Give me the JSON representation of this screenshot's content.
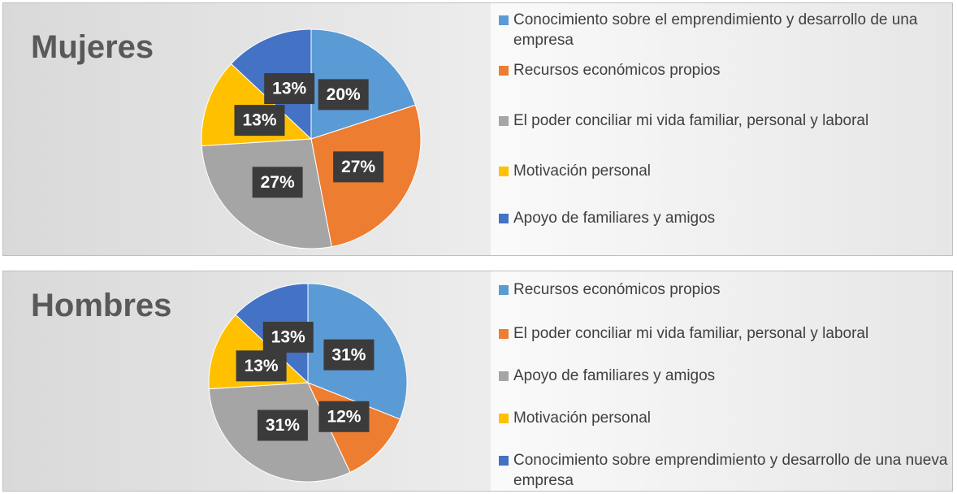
{
  "chart_data": [
    {
      "type": "pie",
      "title": "Mujeres",
      "categories": [
        "Conocimiento sobre el emprendimiento y desarrollo de una empresa",
        "Recursos económicos propios",
        "El poder conciliar mi vida familiar, personal y laboral",
        "Motivación personal",
        "Apoyo de familiares y amigos"
      ],
      "values": [
        20,
        27,
        27,
        13,
        13
      ],
      "value_labels": [
        "20%",
        "27%",
        "27%",
        "13%",
        "13%"
      ],
      "colors": [
        "#5b9bd5",
        "#ed7d31",
        "#a5a5a5",
        "#ffc000",
        "#4472c4"
      ],
      "legend": "right"
    },
    {
      "type": "pie",
      "title": "Hombres",
      "categories": [
        "Recursos económicos propios",
        "El poder conciliar mi vida familiar, personal y laboral",
        "Apoyo de familiares y amigos",
        "Motivación personal",
        "Conocimiento sobre emprendimiento y desarrollo de una nueva empresa"
      ],
      "values": [
        31,
        12,
        31,
        13,
        13
      ],
      "value_labels": [
        "31%",
        "12%",
        "31%",
        "13%",
        "13%"
      ],
      "colors": [
        "#5b9bd5",
        "#ed7d31",
        "#a5a5a5",
        "#ffc000",
        "#4472c4"
      ],
      "legend": "right"
    }
  ]
}
